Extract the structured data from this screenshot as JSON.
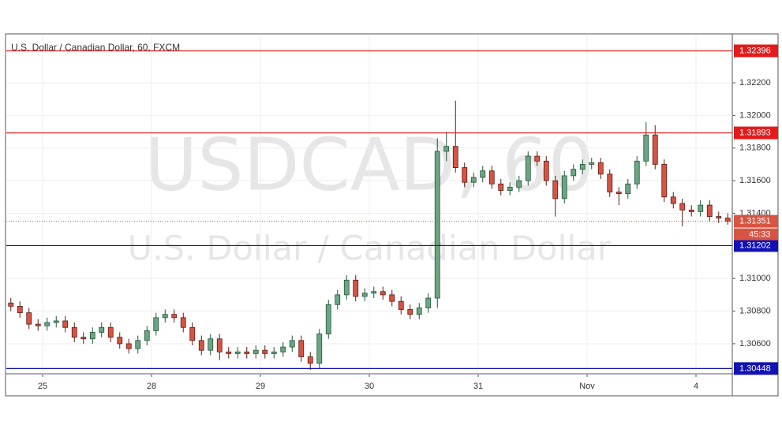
{
  "chart_data": {
    "type": "candlestick",
    "title": "U.S. Dollar / Canadian Dollar, 60, FXCM",
    "watermark": "USDCAD, 60",
    "watermark_subtitle": "U.S. Dollar / Canadian Dollar",
    "xlim": [
      0,
      160
    ],
    "xticks": [
      {
        "value": 8,
        "label": "25"
      },
      {
        "value": 32,
        "label": "28"
      },
      {
        "value": 56,
        "label": "29"
      },
      {
        "value": 80,
        "label": "30"
      },
      {
        "value": 104,
        "label": "31"
      },
      {
        "value": 128,
        "label": "Nov"
      },
      {
        "value": 152,
        "label": "4"
      }
    ],
    "ylim": [
      1.30416,
      1.32495
    ],
    "yticks": [
      {
        "value": 1.306,
        "label": "1.30600"
      },
      {
        "value": 1.308,
        "label": "1.30800"
      },
      {
        "value": 1.31,
        "label": "1.31000"
      },
      {
        "value": 1.314,
        "label": "1.31400"
      },
      {
        "value": 1.316,
        "label": "1.31600"
      },
      {
        "value": 1.318,
        "label": "1.31800"
      },
      {
        "value": 1.32,
        "label": "1.32000"
      },
      {
        "value": 1.322,
        "label": "1.32200"
      }
    ],
    "grid": true,
    "up_color": "#6ba583",
    "down_color": "#d75442",
    "x": [
      1,
      3,
      5,
      7,
      9,
      11,
      13,
      15,
      17,
      19,
      21,
      23,
      25,
      27,
      29,
      31,
      33,
      35,
      37,
      39,
      41,
      43,
      45,
      47,
      49,
      51,
      53,
      55,
      57,
      59,
      61,
      63,
      65,
      67,
      69,
      71,
      73,
      75,
      77,
      79,
      81,
      83,
      85,
      87,
      89,
      91,
      93,
      95,
      97,
      99,
      101,
      103,
      105,
      107,
      109,
      111,
      113,
      115,
      117,
      119,
      121,
      123,
      125,
      127,
      129,
      131,
      133,
      135,
      137,
      139,
      141,
      143,
      145,
      147,
      149,
      151,
      153,
      155,
      157,
      159
    ],
    "open": [
      1.3085,
      1.3083,
      1.3079,
      1.3072,
      1.3071,
      1.3073,
      1.3074,
      1.307,
      1.3064,
      1.3063,
      1.3067,
      1.307,
      1.3064,
      1.306,
      1.3057,
      1.3062,
      1.3068,
      1.3076,
      1.3078,
      1.3076,
      1.307,
      1.3062,
      1.3056,
      1.3063,
      1.3055,
      1.3054,
      1.3055,
      1.3054,
      1.3056,
      1.3054,
      1.3055,
      1.3058,
      1.3062,
      1.3052,
      1.3048,
      1.3066,
      1.3084,
      1.309,
      1.3099,
      1.3089,
      1.3091,
      1.3092,
      1.309,
      1.3086,
      1.3081,
      1.3078,
      1.3082,
      1.3088,
      1.3178,
      1.3181,
      1.3168,
      1.3159,
      1.3162,
      1.3166,
      1.3158,
      1.3154,
      1.3156,
      1.316,
      1.3175,
      1.3172,
      1.316,
      1.3149,
      1.3163,
      1.3167,
      1.317,
      1.3171,
      1.3164,
      1.3153,
      1.3152,
      1.3158,
      1.3172,
      1.3188,
      1.317,
      1.315,
      1.3146,
      1.3142,
      1.3141,
      1.3145,
      1.3138,
      1.3137
    ],
    "high": [
      1.3088,
      1.3086,
      1.3082,
      1.3075,
      1.3076,
      1.3077,
      1.3077,
      1.3073,
      1.3067,
      1.307,
      1.3073,
      1.3073,
      1.3067,
      1.3063,
      1.3065,
      1.3071,
      1.3079,
      1.3081,
      1.3081,
      1.3079,
      1.3073,
      1.3065,
      1.3066,
      1.3066,
      1.3058,
      1.3058,
      1.3058,
      1.3059,
      1.3059,
      1.3058,
      1.3061,
      1.3065,
      1.3065,
      1.3055,
      1.3069,
      1.3087,
      1.3093,
      1.3102,
      1.3102,
      1.3094,
      1.3095,
      1.3095,
      1.3093,
      1.3089,
      1.3084,
      1.3085,
      1.3091,
      1.3186,
      1.319,
      1.3209,
      1.3171,
      1.3165,
      1.3169,
      1.3169,
      1.3161,
      1.3159,
      1.3163,
      1.3178,
      1.3178,
      1.3175,
      1.3163,
      1.3166,
      1.317,
      1.3173,
      1.3174,
      1.3174,
      1.3167,
      1.3156,
      1.3161,
      1.3175,
      1.3196,
      1.3194,
      1.3173,
      1.3153,
      1.3149,
      1.3145,
      1.3148,
      1.3148,
      1.3141,
      1.314
    ],
    "low": [
      1.308,
      1.3076,
      1.3069,
      1.3068,
      1.3068,
      1.307,
      1.3067,
      1.3061,
      1.306,
      1.306,
      1.3064,
      1.3061,
      1.3057,
      1.3054,
      1.3054,
      1.3059,
      1.3065,
      1.3073,
      1.3073,
      1.3067,
      1.3059,
      1.3053,
      1.3053,
      1.305,
      1.3051,
      1.3051,
      1.3051,
      1.3051,
      1.3051,
      1.3051,
      1.3052,
      1.3055,
      1.3049,
      1.3044,
      1.3045,
      1.3063,
      1.3081,
      1.3087,
      1.3086,
      1.3086,
      1.3088,
      1.3087,
      1.3083,
      1.3078,
      1.3075,
      1.3075,
      1.3079,
      1.3082,
      1.3172,
      1.3165,
      1.3156,
      1.3156,
      1.3159,
      1.3155,
      1.3151,
      1.3151,
      1.3153,
      1.3157,
      1.3169,
      1.3157,
      1.3138,
      1.3146,
      1.316,
      1.3164,
      1.3167,
      1.3161,
      1.315,
      1.3145,
      1.3149,
      1.3155,
      1.3169,
      1.3167,
      1.3147,
      1.3143,
      1.3132,
      1.3138,
      1.3138,
      1.3135,
      1.3134,
      1.3133
    ],
    "close": [
      1.3083,
      1.3079,
      1.3072,
      1.3071,
      1.3073,
      1.3074,
      1.307,
      1.3064,
      1.3063,
      1.3067,
      1.307,
      1.3064,
      1.306,
      1.3057,
      1.3062,
      1.3068,
      1.3076,
      1.3078,
      1.3076,
      1.307,
      1.3062,
      1.3056,
      1.3063,
      1.3055,
      1.3054,
      1.3055,
      1.3054,
      1.3056,
      1.3054,
      1.3055,
      1.3058,
      1.3062,
      1.3052,
      1.3048,
      1.3066,
      1.3084,
      1.309,
      1.3099,
      1.3089,
      1.3091,
      1.3092,
      1.309,
      1.3086,
      1.3081,
      1.3078,
      1.3082,
      1.3088,
      1.3178,
      1.3181,
      1.3168,
      1.3159,
      1.3162,
      1.3166,
      1.3158,
      1.3154,
      1.3156,
      1.316,
      1.3175,
      1.3172,
      1.316,
      1.3149,
      1.3163,
      1.3167,
      1.317,
      1.3171,
      1.3164,
      1.3153,
      1.3152,
      1.3158,
      1.3172,
      1.3188,
      1.317,
      1.315,
      1.3146,
      1.3142,
      1.3141,
      1.3145,
      1.3138,
      1.3137,
      1.31351
    ],
    "levels": [
      {
        "value": 1.32396,
        "label": "1.32396",
        "color": "#e31b1b"
      },
      {
        "value": 1.31893,
        "label": "1.31893",
        "color": "#e31b1b"
      },
      {
        "value": 1.31202,
        "label": "1.31202",
        "color": "#1212b4"
      },
      {
        "value": 1.30448,
        "label": "1.30448",
        "color": "#1212b4"
      }
    ],
    "last_price": {
      "value": 1.31351,
      "label": "1.31351",
      "color": "#d75442"
    },
    "countdown": "45:33"
  }
}
